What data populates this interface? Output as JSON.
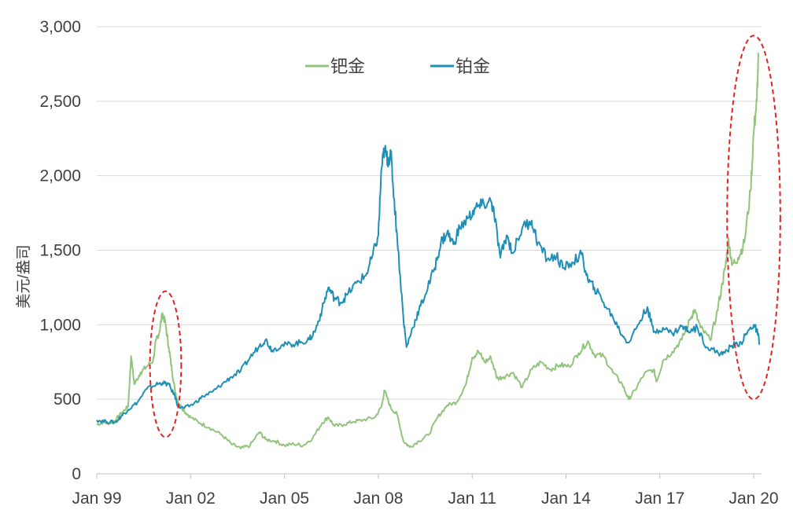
{
  "chart_data": {
    "type": "line",
    "ylabel": "美元/盎司",
    "xlabel": "",
    "ylim": [
      0,
      3000
    ],
    "yticks": [
      0,
      500,
      1000,
      1500,
      2000,
      2500,
      3000
    ],
    "ytick_labels": [
      "0",
      "500",
      "1,000",
      "1,500",
      "2,000",
      "2,500",
      "3,000"
    ],
    "xlim": [
      1999.0,
      2020.25
    ],
    "xticks": [
      1999,
      2002,
      2005,
      2008,
      2011,
      2014,
      2017,
      2020
    ],
    "xtick_labels": [
      "Jan 99",
      "Jan 02",
      "Jan 05",
      "Jan 08",
      "Jan 11",
      "Jan 14",
      "Jan 17",
      "Jan 20"
    ],
    "grid": "horizontal",
    "legend": "top-center",
    "series": [
      {
        "name": "钯金",
        "color": "#93c47d",
        "points": [
          [
            1999.0,
            330
          ],
          [
            1999.2,
            345
          ],
          [
            1999.4,
            340
          ],
          [
            1999.6,
            360
          ],
          [
            1999.8,
            410
          ],
          [
            2000.0,
            450
          ],
          [
            2000.1,
            790
          ],
          [
            2000.2,
            600
          ],
          [
            2000.4,
            680
          ],
          [
            2000.6,
            720
          ],
          [
            2000.8,
            760
          ],
          [
            2000.9,
            900
          ],
          [
            2001.0,
            950
          ],
          [
            2001.1,
            1080
          ],
          [
            2001.2,
            1000
          ],
          [
            2001.3,
            850
          ],
          [
            2001.4,
            700
          ],
          [
            2001.5,
            560
          ],
          [
            2001.6,
            480
          ],
          [
            2001.8,
            420
          ],
          [
            2002.0,
            380
          ],
          [
            2002.3,
            340
          ],
          [
            2002.6,
            310
          ],
          [
            2003.0,
            260
          ],
          [
            2003.3,
            200
          ],
          [
            2003.6,
            170
          ],
          [
            2003.9,
            190
          ],
          [
            2004.2,
            280
          ],
          [
            2004.4,
            230
          ],
          [
            2004.7,
            220
          ],
          [
            2005.0,
            190
          ],
          [
            2005.3,
            200
          ],
          [
            2005.6,
            190
          ],
          [
            2005.9,
            240
          ],
          [
            2006.2,
            340
          ],
          [
            2006.4,
            380
          ],
          [
            2006.6,
            320
          ],
          [
            2006.9,
            330
          ],
          [
            2007.2,
            350
          ],
          [
            2007.5,
            360
          ],
          [
            2007.9,
            380
          ],
          [
            2008.1,
            450
          ],
          [
            2008.2,
            560
          ],
          [
            2008.4,
            440
          ],
          [
            2008.6,
            400
          ],
          [
            2008.8,
            220
          ],
          [
            2009.0,
            180
          ],
          [
            2009.3,
            220
          ],
          [
            2009.6,
            260
          ],
          [
            2009.9,
            380
          ],
          [
            2010.2,
            460
          ],
          [
            2010.5,
            480
          ],
          [
            2010.8,
            600
          ],
          [
            2011.0,
            780
          ],
          [
            2011.2,
            820
          ],
          [
            2011.4,
            750
          ],
          [
            2011.6,
            780
          ],
          [
            2011.8,
            640
          ],
          [
            2012.0,
            650
          ],
          [
            2012.3,
            680
          ],
          [
            2012.6,
            580
          ],
          [
            2012.9,
            700
          ],
          [
            2013.2,
            750
          ],
          [
            2013.5,
            700
          ],
          [
            2013.8,
            730
          ],
          [
            2014.1,
            720
          ],
          [
            2014.4,
            810
          ],
          [
            2014.7,
            890
          ],
          [
            2014.9,
            800
          ],
          [
            2015.2,
            790
          ],
          [
            2015.5,
            680
          ],
          [
            2015.8,
            600
          ],
          [
            2016.0,
            500
          ],
          [
            2016.2,
            560
          ],
          [
            2016.5,
            670
          ],
          [
            2016.8,
            700
          ],
          [
            2016.9,
            620
          ],
          [
            2017.1,
            760
          ],
          [
            2017.4,
            820
          ],
          [
            2017.7,
            900
          ],
          [
            2018.0,
            1050
          ],
          [
            2018.1,
            1100
          ],
          [
            2018.3,
            980
          ],
          [
            2018.6,
            900
          ],
          [
            2018.8,
            1050
          ],
          [
            2019.0,
            1280
          ],
          [
            2019.1,
            1400
          ],
          [
            2019.2,
            1580
          ],
          [
            2019.3,
            1400
          ],
          [
            2019.5,
            1450
          ],
          [
            2019.7,
            1550
          ],
          [
            2019.9,
            1900
          ],
          [
            2020.0,
            2300
          ],
          [
            2020.1,
            2500
          ],
          [
            2020.15,
            2800
          ]
        ]
      },
      {
        "name": "铂金",
        "color": "#1f8fb5",
        "points": [
          [
            1999.0,
            360
          ],
          [
            1999.3,
            350
          ],
          [
            1999.6,
            345
          ],
          [
            1999.8,
            390
          ],
          [
            2000.0,
            430
          ],
          [
            2000.3,
            480
          ],
          [
            2000.6,
            570
          ],
          [
            2000.9,
            600
          ],
          [
            2001.1,
            610
          ],
          [
            2001.3,
            600
          ],
          [
            2001.5,
            520
          ],
          [
            2001.6,
            450
          ],
          [
            2001.8,
            440
          ],
          [
            2002.1,
            470
          ],
          [
            2002.4,
            520
          ],
          [
            2002.7,
            550
          ],
          [
            2003.0,
            600
          ],
          [
            2003.3,
            650
          ],
          [
            2003.6,
            690
          ],
          [
            2003.9,
            780
          ],
          [
            2004.2,
            860
          ],
          [
            2004.4,
            900
          ],
          [
            2004.6,
            830
          ],
          [
            2004.9,
            860
          ],
          [
            2005.2,
            870
          ],
          [
            2005.5,
            880
          ],
          [
            2005.8,
            900
          ],
          [
            2006.0,
            970
          ],
          [
            2006.2,
            1100
          ],
          [
            2006.4,
            1250
          ],
          [
            2006.6,
            1180
          ],
          [
            2006.8,
            1150
          ],
          [
            2007.0,
            1200
          ],
          [
            2007.3,
            1280
          ],
          [
            2007.6,
            1330
          ],
          [
            2007.8,
            1450
          ],
          [
            2008.0,
            1600
          ],
          [
            2008.1,
            2050
          ],
          [
            2008.2,
            2180
          ],
          [
            2008.3,
            2100
          ],
          [
            2008.4,
            2150
          ],
          [
            2008.5,
            1850
          ],
          [
            2008.6,
            1600
          ],
          [
            2008.8,
            1050
          ],
          [
            2008.9,
            850
          ],
          [
            2009.1,
            980
          ],
          [
            2009.3,
            1100
          ],
          [
            2009.5,
            1200
          ],
          [
            2009.8,
            1380
          ],
          [
            2010.0,
            1550
          ],
          [
            2010.2,
            1620
          ],
          [
            2010.4,
            1540
          ],
          [
            2010.6,
            1650
          ],
          [
            2010.9,
            1720
          ],
          [
            2011.1,
            1780
          ],
          [
            2011.3,
            1800
          ],
          [
            2011.6,
            1830
          ],
          [
            2011.7,
            1750
          ],
          [
            2011.9,
            1450
          ],
          [
            2012.1,
            1600
          ],
          [
            2012.3,
            1480
          ],
          [
            2012.6,
            1650
          ],
          [
            2012.9,
            1700
          ],
          [
            2013.1,
            1550
          ],
          [
            2013.4,
            1440
          ],
          [
            2013.7,
            1460
          ],
          [
            2013.9,
            1380
          ],
          [
            2014.2,
            1420
          ],
          [
            2014.5,
            1470
          ],
          [
            2014.7,
            1300
          ],
          [
            2014.9,
            1250
          ],
          [
            2015.2,
            1150
          ],
          [
            2015.5,
            1050
          ],
          [
            2015.8,
            930
          ],
          [
            2016.0,
            880
          ],
          [
            2016.3,
            1000
          ],
          [
            2016.6,
            1120
          ],
          [
            2016.8,
            950
          ],
          [
            2017.1,
            980
          ],
          [
            2017.4,
            940
          ],
          [
            2017.7,
            990
          ],
          [
            2017.9,
            960
          ],
          [
            2018.2,
            980
          ],
          [
            2018.5,
            850
          ],
          [
            2018.8,
            820
          ],
          [
            2019.0,
            800
          ],
          [
            2019.3,
            860
          ],
          [
            2019.6,
            880
          ],
          [
            2019.8,
            950
          ],
          [
            2020.0,
            1000
          ],
          [
            2020.1,
            960
          ],
          [
            2020.2,
            870
          ]
        ]
      }
    ],
    "annotations": [
      {
        "shape": "dashed-ellipse",
        "color": "#e02424",
        "x_center": 2001.2,
        "y_center": 735,
        "x_radius": 0.5,
        "y_radius": 490
      },
      {
        "shape": "dashed-ellipse",
        "color": "#e02424",
        "x_center": 2020.0,
        "y_center": 1720,
        "x_radius": 0.85,
        "y_radius": 1220
      }
    ]
  }
}
